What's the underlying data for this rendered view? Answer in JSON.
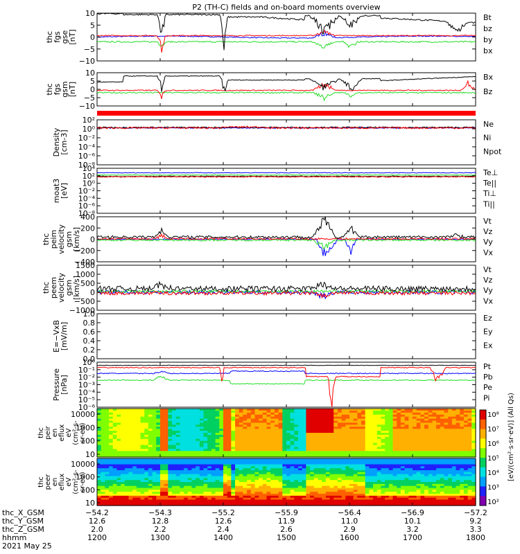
{
  "title": "P2 (TH-C) fields and on-board moments overview",
  "colors": {
    "black": "#000000",
    "red": "#ff0000",
    "green": "#22dd22",
    "blue": "#0000ff",
    "bar": "#ff0000"
  },
  "chart_data": [
    {
      "id": "p1",
      "type": "line",
      "ylabel": [
        "thc",
        "fgs",
        "gse",
        "[nT]"
      ],
      "ticks": [
        "10",
        "5",
        "0",
        "−5",
        "−10"
      ],
      "ylim": [
        -10,
        10
      ],
      "legend": [
        {
          "name": "Bt",
          "color": "#000000"
        },
        {
          "name": "bz",
          "color": "#ff0000"
        },
        {
          "name": "by",
          "color": "#22dd22"
        },
        {
          "name": "bx",
          "color": "#0000ff"
        }
      ]
    },
    {
      "id": "p2",
      "type": "line",
      "ylabel": [
        "thc",
        "fgs",
        "gsm",
        "[nT]"
      ],
      "ticks": [
        "10",
        "5",
        "0",
        "−5",
        "−10"
      ],
      "ylim": [
        -10,
        10
      ],
      "legend": [
        {
          "name": "Bx",
          "color": "#000000"
        },
        {
          "name": "Bz",
          "color": "#8b4513"
        }
      ]
    },
    {
      "id": "p3",
      "type": "line",
      "ylabel": [
        "Density",
        "[cm-3]"
      ],
      "ticks": [
        "10²",
        "10⁰",
        "10⁻²",
        "10⁻⁴",
        "10⁻⁶",
        "10⁻⁸"
      ],
      "legend": [
        {
          "name": "Ne",
          "color": "#ff0000"
        },
        {
          "name": "Ni",
          "color": "#000000"
        },
        {
          "name": "Npot",
          "color": "#0000ff"
        }
      ]
    },
    {
      "id": "p4",
      "type": "line",
      "ylabel": [
        "moat3",
        "[eV]"
      ],
      "ticks": [
        "10⁴",
        "10²",
        "10⁰",
        "10⁻²",
        "10⁻⁴",
        "10⁻⁶",
        "10⁻⁸"
      ],
      "legend": [
        {
          "name": "Te⊥",
          "color": "#ff0000"
        },
        {
          "name": "Te||",
          "color": "#000000"
        },
        {
          "name": "Ti⊥",
          "color": "#0000ff"
        },
        {
          "name": "Ti||",
          "color": "#22dd22"
        }
      ]
    },
    {
      "id": "p5",
      "type": "line",
      "ylabel": [
        "thc",
        "peim",
        "velocity",
        "gsm",
        "[km/s]"
      ],
      "ticks": [
        "400",
        "200",
        "0",
        "−200",
        "−400"
      ],
      "ylim": [
        -400,
        400
      ],
      "legend": [
        {
          "name": "Vt",
          "color": "#000000"
        },
        {
          "name": "Vz",
          "color": "#ff0000"
        },
        {
          "name": "Vy",
          "color": "#22dd22"
        },
        {
          "name": "Vx",
          "color": "#0000ff"
        }
      ]
    },
    {
      "id": "p6",
      "type": "line",
      "ylabel": [
        "thc",
        "peem",
        "velocity",
        "gsm",
        "[km/s]"
      ],
      "ticks": [
        "1500",
        "1000",
        "500",
        "0",
        "−500",
        "−1000"
      ],
      "ylim": [
        -1000,
        1500
      ],
      "legend": [
        {
          "name": "Vt",
          "color": "#000000"
        },
        {
          "name": "Vz",
          "color": "#ff0000"
        },
        {
          "name": "Vy",
          "color": "#22dd22"
        },
        {
          "name": "Vx",
          "color": "#0000ff"
        }
      ]
    },
    {
      "id": "p7",
      "type": "line",
      "ylabel": [
        "E=−VxB",
        "[mV/m]"
      ],
      "ticks": [
        "1.0",
        "0.8",
        "0.6",
        "0.4",
        "0.2",
        "0.0"
      ],
      "ylim": [
        0,
        1
      ],
      "legend": [
        {
          "name": "Ez",
          "color": "#ff0000"
        },
        {
          "name": "Ey",
          "color": "#22dd22"
        },
        {
          "name": "Ex",
          "color": "#0000ff"
        }
      ]
    },
    {
      "id": "p8",
      "type": "line",
      "ylabel": [
        "Pressure",
        "[nPa]"
      ],
      "ticks": [
        "10⁰",
        "10⁻¹",
        "10⁻²",
        "10⁻³",
        "10⁻⁴",
        "10⁻⁵",
        "10⁻⁶"
      ],
      "legend": [
        {
          "name": "Pt",
          "color": "#000000"
        },
        {
          "name": "Pb",
          "color": "#8b0000"
        },
        {
          "name": "Pe",
          "color": "#22dd22"
        },
        {
          "name": "Pi",
          "color": "#0000ff"
        }
      ]
    },
    {
      "id": "p9",
      "type": "heatmap",
      "ylabel": [
        "thc",
        "peir",
        "en",
        "eflux",
        "eV",
        "(cm²-s-",
        "sr-eV)"
      ],
      "ticks": [
        "10000",
        "1000",
        "100",
        "10"
      ]
    },
    {
      "id": "p10",
      "type": "heatmap",
      "ylabel": [
        "thc",
        "peer",
        "en",
        "eflux",
        "eV",
        "(cm²-s-",
        "sr-eV)"
      ],
      "ticks": [
        "10000",
        "1000",
        "100",
        "10"
      ]
    }
  ],
  "colorbar": {
    "ticks": [
      "10⁸",
      "10⁷",
      "10⁶",
      "10⁵",
      "10⁴",
      "10³",
      "10²"
    ],
    "label": "[eV/(cm²·s·sr·eV)] (All Qs)"
  },
  "x_axis": {
    "row_labels": [
      "thc_X_GSM",
      "thc_Y_GSM",
      "thc_Z_GSM",
      "hhmm",
      "2021 May 25"
    ],
    "columns": [
      {
        "x_gsm": "−54.2",
        "y_gsm": "12.6",
        "z_gsm": "2.0",
        "hhmm": "1200"
      },
      {
        "x_gsm": "−54.3",
        "y_gsm": "12.8",
        "z_gsm": "2.2",
        "hhmm": "1300"
      },
      {
        "x_gsm": "−55.2",
        "y_gsm": "12.6",
        "z_gsm": "2.4",
        "hhmm": "1400"
      },
      {
        "x_gsm": "−55.9",
        "y_gsm": "11.9",
        "z_gsm": "2.6",
        "hhmm": "1500"
      },
      {
        "x_gsm": "−56.4",
        "y_gsm": "11.0",
        "z_gsm": "2.9",
        "hhmm": "1600"
      },
      {
        "x_gsm": "−56.9",
        "y_gsm": "10.1",
        "z_gsm": "3.2",
        "hhmm": "1700"
      },
      {
        "x_gsm": "−57.2",
        "y_gsm": "9.2",
        "z_gsm": "3.3",
        "hhmm": "1800"
      }
    ]
  }
}
